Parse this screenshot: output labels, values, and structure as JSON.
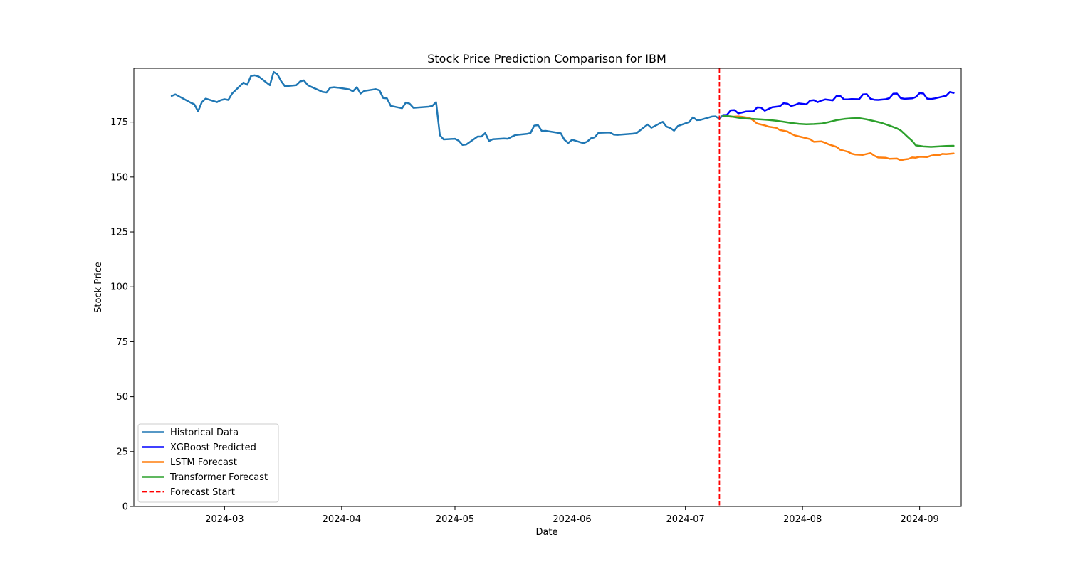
{
  "chart_data": {
    "type": "line",
    "title": "Stock Price Prediction Comparison for IBM",
    "xlabel": "Date",
    "ylabel": "Stock Price",
    "xlim": [
      "2024-02-06",
      "2024-09-12"
    ],
    "ylim": [
      0,
      199.5
    ],
    "x_ticks": [
      "2024-03-01",
      "2024-04-01",
      "2024-05-01",
      "2024-06-01",
      "2024-07-01",
      "2024-08-01",
      "2024-09-01"
    ],
    "x_tick_labels": [
      "2024-03",
      "2024-04",
      "2024-05",
      "2024-06",
      "2024-07",
      "2024-08",
      "2024-09"
    ],
    "y_ticks": [
      0,
      25,
      50,
      75,
      100,
      125,
      150,
      175
    ],
    "y_tick_labels": [
      "0",
      "25",
      "50",
      "75",
      "100",
      "125",
      "150",
      "175"
    ],
    "grid": false,
    "legend_position": "lower-left",
    "forecast_start": "2024-07-10",
    "series": [
      {
        "name": "Historical Data",
        "color": "#1f77b4",
        "style": "solid",
        "points": [
          [
            "2024-02-16",
            186.9
          ],
          [
            "2024-02-17",
            187.6
          ],
          [
            "2024-02-21",
            183.9
          ],
          [
            "2024-02-22",
            183.1
          ],
          [
            "2024-02-23",
            179.9
          ],
          [
            "2024-02-24",
            184.1
          ],
          [
            "2024-02-25",
            185.7
          ],
          [
            "2024-02-28",
            184.1
          ],
          [
            "2024-02-29",
            185.0
          ],
          [
            "2024-03-01",
            185.4
          ],
          [
            "2024-03-02",
            185.1
          ],
          [
            "2024-03-03",
            188.0
          ],
          [
            "2024-03-06",
            193.0
          ],
          [
            "2024-03-07",
            192.0
          ],
          [
            "2024-03-08",
            196.0
          ],
          [
            "2024-03-09",
            196.3
          ],
          [
            "2024-03-10",
            195.8
          ],
          [
            "2024-03-13",
            191.8
          ],
          [
            "2024-03-14",
            197.8
          ],
          [
            "2024-03-15",
            196.8
          ],
          [
            "2024-03-16",
            193.6
          ],
          [
            "2024-03-17",
            191.3
          ],
          [
            "2024-03-20",
            191.8
          ],
          [
            "2024-03-21",
            193.5
          ],
          [
            "2024-03-22",
            194.0
          ],
          [
            "2024-03-23",
            191.9
          ],
          [
            "2024-03-24",
            191.0
          ],
          [
            "2024-03-27",
            188.7
          ],
          [
            "2024-03-28",
            188.5
          ],
          [
            "2024-03-29",
            190.7
          ],
          [
            "2024-03-30",
            190.9
          ],
          [
            "2024-03-31",
            190.7
          ],
          [
            "2024-04-03",
            189.9
          ],
          [
            "2024-04-04",
            189.0
          ],
          [
            "2024-04-05",
            190.9
          ],
          [
            "2024-04-06",
            188.0
          ],
          [
            "2024-04-07",
            189.2
          ],
          [
            "2024-04-10",
            190.0
          ],
          [
            "2024-04-11",
            189.5
          ],
          [
            "2024-04-12",
            186.0
          ],
          [
            "2024-04-13",
            185.8
          ],
          [
            "2024-04-14",
            182.4
          ],
          [
            "2024-04-17",
            181.3
          ],
          [
            "2024-04-18",
            183.9
          ],
          [
            "2024-04-19",
            183.4
          ],
          [
            "2024-04-20",
            181.5
          ],
          [
            "2024-04-24",
            182.0
          ],
          [
            "2024-04-25",
            182.4
          ],
          [
            "2024-04-26",
            184.1
          ],
          [
            "2024-04-27",
            169.0
          ],
          [
            "2024-04-28",
            167.1
          ],
          [
            "2024-05-01",
            167.4
          ],
          [
            "2024-05-02",
            166.5
          ],
          [
            "2024-05-03",
            164.6
          ],
          [
            "2024-05-04",
            164.8
          ],
          [
            "2024-05-07",
            168.4
          ],
          [
            "2024-05-08",
            168.4
          ],
          [
            "2024-05-09",
            170.0
          ],
          [
            "2024-05-10",
            166.4
          ],
          [
            "2024-05-11",
            167.2
          ],
          [
            "2024-05-14",
            167.5
          ],
          [
            "2024-05-15",
            167.4
          ],
          [
            "2024-05-16",
            168.3
          ],
          [
            "2024-05-17",
            169.1
          ],
          [
            "2024-05-20",
            169.6
          ],
          [
            "2024-05-21",
            170.0
          ],
          [
            "2024-05-22",
            173.4
          ],
          [
            "2024-05-23",
            173.6
          ],
          [
            "2024-05-24",
            170.9
          ],
          [
            "2024-05-25",
            171.0
          ],
          [
            "2024-05-28",
            170.2
          ],
          [
            "2024-05-29",
            169.9
          ],
          [
            "2024-05-30",
            166.9
          ],
          [
            "2024-05-31",
            165.5
          ],
          [
            "2024-06-01",
            167.0
          ],
          [
            "2024-06-04",
            165.4
          ],
          [
            "2024-06-05",
            166.1
          ],
          [
            "2024-06-06",
            167.6
          ],
          [
            "2024-06-07",
            168.1
          ],
          [
            "2024-06-08",
            170.1
          ],
          [
            "2024-06-11",
            170.3
          ],
          [
            "2024-06-12",
            169.3
          ],
          [
            "2024-06-13",
            169.2
          ],
          [
            "2024-06-17",
            169.7
          ],
          [
            "2024-06-18",
            169.9
          ],
          [
            "2024-06-21",
            173.9
          ],
          [
            "2024-06-22",
            172.4
          ],
          [
            "2024-06-25",
            175.1
          ],
          [
            "2024-06-26",
            172.9
          ],
          [
            "2024-06-27",
            172.3
          ],
          [
            "2024-06-28",
            171.1
          ],
          [
            "2024-06-29",
            173.2
          ],
          [
            "2024-07-02",
            175.0
          ],
          [
            "2024-07-03",
            177.2
          ],
          [
            "2024-07-04",
            175.9
          ],
          [
            "2024-07-05",
            176.0
          ],
          [
            "2024-07-08",
            177.5
          ],
          [
            "2024-07-09",
            177.6
          ],
          [
            "2024-07-10",
            176.5
          ],
          [
            "2024-07-11",
            178.3
          ]
        ]
      },
      {
        "name": "XGBoost Predicted",
        "color": "#0000ff",
        "style": "solid",
        "points": [
          [
            "2024-07-11",
            178.2
          ],
          [
            "2024-07-12",
            178.3
          ],
          [
            "2024-07-13",
            180.4
          ],
          [
            "2024-07-14",
            180.5
          ],
          [
            "2024-07-15",
            179.0
          ],
          [
            "2024-07-16",
            179.4
          ],
          [
            "2024-07-17",
            179.8
          ],
          [
            "2024-07-19",
            179.9
          ],
          [
            "2024-07-20",
            181.7
          ],
          [
            "2024-07-21",
            181.6
          ],
          [
            "2024-07-22",
            180.2
          ],
          [
            "2024-07-23",
            181.0
          ],
          [
            "2024-07-24",
            181.8
          ],
          [
            "2024-07-26",
            182.2
          ],
          [
            "2024-07-27",
            183.6
          ],
          [
            "2024-07-28",
            183.4
          ],
          [
            "2024-07-29",
            182.3
          ],
          [
            "2024-07-30",
            182.8
          ],
          [
            "2024-07-31",
            183.5
          ],
          [
            "2024-08-02",
            183.1
          ],
          [
            "2024-08-03",
            184.8
          ],
          [
            "2024-08-04",
            185.0
          ],
          [
            "2024-08-05",
            184.1
          ],
          [
            "2024-08-06",
            184.8
          ],
          [
            "2024-08-07",
            185.3
          ],
          [
            "2024-08-09",
            184.9
          ],
          [
            "2024-08-10",
            186.9
          ],
          [
            "2024-08-11",
            186.9
          ],
          [
            "2024-08-12",
            185.3
          ],
          [
            "2024-08-13",
            185.3
          ],
          [
            "2024-08-14",
            185.5
          ],
          [
            "2024-08-16",
            185.4
          ],
          [
            "2024-08-17",
            187.6
          ],
          [
            "2024-08-18",
            187.7
          ],
          [
            "2024-08-19",
            185.6
          ],
          [
            "2024-08-20",
            185.2
          ],
          [
            "2024-08-21",
            185.1
          ],
          [
            "2024-08-23",
            185.4
          ],
          [
            "2024-08-24",
            185.9
          ],
          [
            "2024-08-25",
            187.9
          ],
          [
            "2024-08-26",
            188.0
          ],
          [
            "2024-08-27",
            185.9
          ],
          [
            "2024-08-28",
            185.6
          ],
          [
            "2024-08-30",
            185.8
          ],
          [
            "2024-08-31",
            186.4
          ],
          [
            "2024-09-01",
            188.2
          ],
          [
            "2024-09-02",
            188.0
          ],
          [
            "2024-09-03",
            185.7
          ],
          [
            "2024-09-04",
            185.5
          ],
          [
            "2024-09-05",
            185.8
          ],
          [
            "2024-09-08",
            187.0
          ],
          [
            "2024-09-09",
            188.7
          ],
          [
            "2024-09-10",
            188.3
          ]
        ]
      },
      {
        "name": "LSTM Forecast",
        "color": "#ff7f0e",
        "style": "solid",
        "points": [
          [
            "2024-07-11",
            178.0
          ],
          [
            "2024-07-13",
            177.4
          ],
          [
            "2024-07-15",
            177.6
          ],
          [
            "2024-07-16",
            177.4
          ],
          [
            "2024-07-18",
            176.9
          ],
          [
            "2024-07-19",
            175.7
          ],
          [
            "2024-07-20",
            174.3
          ],
          [
            "2024-07-21",
            173.9
          ],
          [
            "2024-07-22",
            173.5
          ],
          [
            "2024-07-23",
            172.9
          ],
          [
            "2024-07-25",
            172.4
          ],
          [
            "2024-07-26",
            171.4
          ],
          [
            "2024-07-28",
            170.7
          ],
          [
            "2024-07-29",
            169.7
          ],
          [
            "2024-07-30",
            168.9
          ],
          [
            "2024-08-01",
            168.1
          ],
          [
            "2024-08-03",
            167.2
          ],
          [
            "2024-08-04",
            166.0
          ],
          [
            "2024-08-06",
            166.2
          ],
          [
            "2024-08-07",
            165.6
          ],
          [
            "2024-08-08",
            164.8
          ],
          [
            "2024-08-10",
            163.7
          ],
          [
            "2024-08-11",
            162.4
          ],
          [
            "2024-08-13",
            161.5
          ],
          [
            "2024-08-14",
            160.6
          ],
          [
            "2024-08-15",
            160.2
          ],
          [
            "2024-08-17",
            160.1
          ],
          [
            "2024-08-19",
            160.9
          ],
          [
            "2024-08-20",
            159.7
          ],
          [
            "2024-08-21",
            158.9
          ],
          [
            "2024-08-23",
            158.8
          ],
          [
            "2024-08-24",
            158.3
          ],
          [
            "2024-08-26",
            158.4
          ],
          [
            "2024-08-27",
            157.6
          ],
          [
            "2024-08-28",
            158.0
          ],
          [
            "2024-08-29",
            158.2
          ],
          [
            "2024-08-30",
            158.9
          ],
          [
            "2024-08-31",
            158.8
          ],
          [
            "2024-09-01",
            159.2
          ],
          [
            "2024-09-03",
            159.1
          ],
          [
            "2024-09-04",
            159.7
          ],
          [
            "2024-09-05",
            160.0
          ],
          [
            "2024-09-06",
            159.9
          ],
          [
            "2024-09-07",
            160.5
          ],
          [
            "2024-09-08",
            160.4
          ],
          [
            "2024-09-10",
            160.7
          ]
        ]
      },
      {
        "name": "Transformer Forecast",
        "color": "#2ca02c",
        "style": "solid",
        "points": [
          [
            "2024-07-11",
            177.9
          ],
          [
            "2024-07-13",
            177.6
          ],
          [
            "2024-07-15",
            177.0
          ],
          [
            "2024-07-17",
            176.6
          ],
          [
            "2024-07-19",
            176.4
          ],
          [
            "2024-07-21",
            176.2
          ],
          [
            "2024-07-23",
            176.0
          ],
          [
            "2024-07-25",
            175.6
          ],
          [
            "2024-07-27",
            175.1
          ],
          [
            "2024-07-29",
            174.6
          ],
          [
            "2024-07-31",
            174.2
          ],
          [
            "2024-08-02",
            174.0
          ],
          [
            "2024-08-04",
            174.1
          ],
          [
            "2024-08-06",
            174.3
          ],
          [
            "2024-08-08",
            175.0
          ],
          [
            "2024-08-10",
            175.9
          ],
          [
            "2024-08-12",
            176.4
          ],
          [
            "2024-08-14",
            176.7
          ],
          [
            "2024-08-16",
            176.8
          ],
          [
            "2024-08-18",
            176.2
          ],
          [
            "2024-08-20",
            175.4
          ],
          [
            "2024-08-22",
            174.6
          ],
          [
            "2024-08-24",
            173.4
          ],
          [
            "2024-08-26",
            172.1
          ],
          [
            "2024-08-27",
            171.2
          ],
          [
            "2024-08-28",
            169.6
          ],
          [
            "2024-08-29",
            168.0
          ],
          [
            "2024-08-30",
            166.5
          ],
          [
            "2024-08-31",
            164.4
          ],
          [
            "2024-09-02",
            163.9
          ],
          [
            "2024-09-04",
            163.7
          ],
          [
            "2024-09-06",
            163.9
          ],
          [
            "2024-09-08",
            164.1
          ],
          [
            "2024-09-10",
            164.2
          ]
        ]
      },
      {
        "name": "Forecast Start",
        "color": "#ff0000",
        "style": "dashed"
      }
    ]
  }
}
